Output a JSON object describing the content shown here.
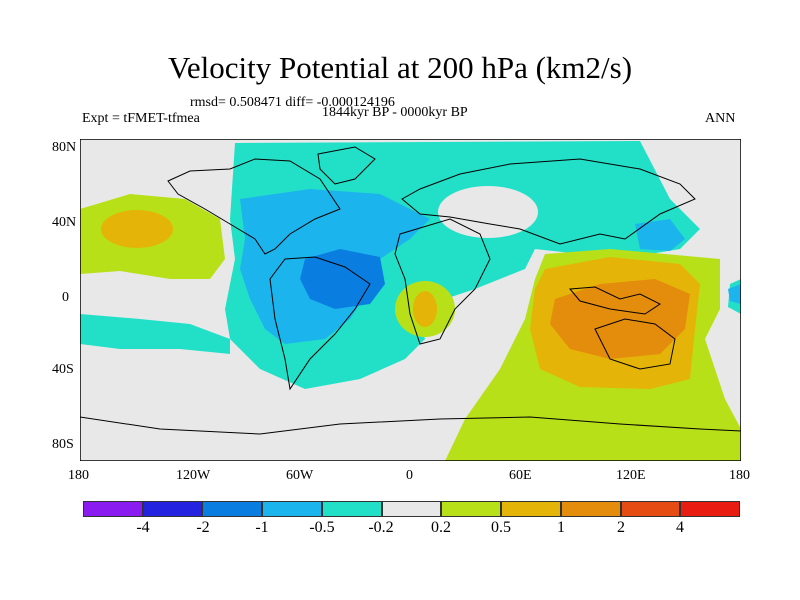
{
  "title": "Velocity Potential at 200 hPa (km2/s)",
  "stats": "rmsd= 0.508471 diff= -0.000124196",
  "experiment": "Expt = tFMET-tfmea",
  "period": "1844kyr BP - 0000kyr BP",
  "season": "ANN",
  "lat_ticks": [
    "80N",
    "40N",
    "0",
    "40S",
    "80S"
  ],
  "lon_ticks": [
    "180",
    "120W",
    "60W",
    "0",
    "60E",
    "120E",
    "180"
  ],
  "colorbar": {
    "colors": [
      "#8a1cf0",
      "#2424e0",
      "#0a7ee0",
      "#1cb4ec",
      "#22e0c8",
      "#e8e8e8",
      "#b8e018",
      "#e4b408",
      "#e48c0c",
      "#e44c14",
      "#e81c10"
    ],
    "labels": [
      "-4",
      "-2",
      "-1",
      "-0.5",
      "-0.2",
      "0.2",
      "0.5",
      "1",
      "2",
      "4"
    ]
  },
  "field_colors": {
    "background": "#e8e8e8",
    "neg_weak": "#22e0c8",
    "neg_mid": "#1cb4ec",
    "neg_strong": "#0a7ee0",
    "pos_weak": "#b8e018",
    "pos_mid": "#e4b408",
    "pos_strong": "#e48c0c"
  }
}
